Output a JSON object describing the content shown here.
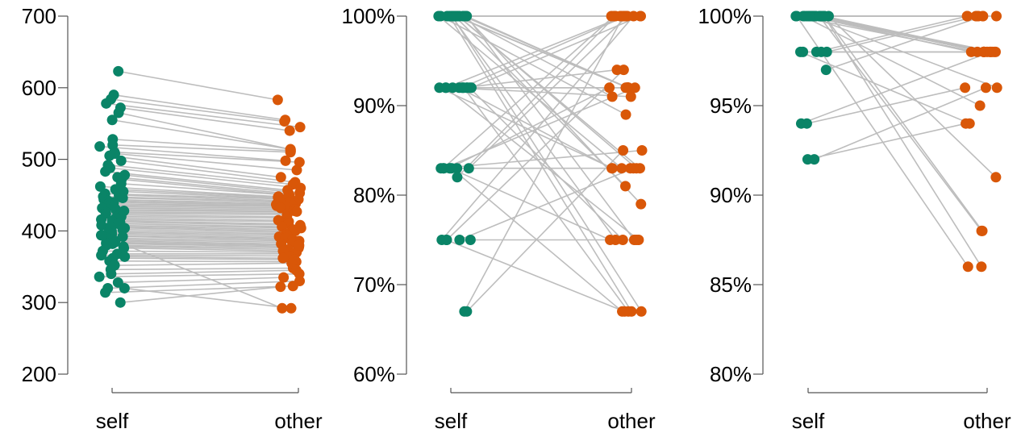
{
  "colors": {
    "self": "#0a8467",
    "other": "#d95708",
    "connector": "#bdbdbd"
  },
  "chart_data": [
    {
      "type": "scatter",
      "title": "",
      "xlabel": "",
      "ylabel": "",
      "categories": [
        "self",
        "other"
      ],
      "ylim": [
        200,
        700
      ],
      "yticks": [
        200,
        300,
        400,
        500,
        600,
        700
      ],
      "ytick_labels": [
        "200",
        "300",
        "400",
        "500",
        "600",
        "700"
      ],
      "series": [
        {
          "values": [
            [
              623,
              583
            ],
            [
              590,
              555
            ],
            [
              584,
              553
            ],
            [
              578,
              545
            ],
            [
              572,
              540
            ],
            [
              565,
              514
            ],
            [
              555,
              514
            ],
            [
              528,
              512
            ],
            [
              520,
              510
            ],
            [
              518,
              498
            ],
            [
              510,
              496
            ],
            [
              508,
              485
            ],
            [
              505,
              475
            ],
            [
              498,
              468
            ],
            [
              492,
              465
            ],
            [
              488,
              460
            ],
            [
              483,
              457
            ],
            [
              478,
              453
            ],
            [
              475,
              452
            ],
            [
              472,
              450
            ],
            [
              466,
              450
            ],
            [
              462,
              448
            ],
            [
              458,
              447
            ],
            [
              455,
              445
            ],
            [
              452,
              444
            ],
            [
              450,
              442
            ],
            [
              448,
              441
            ],
            [
              446,
              440
            ],
            [
              444,
              438
            ],
            [
              442,
              437
            ],
            [
              440,
              436
            ],
            [
              438,
              435
            ],
            [
              436,
              434
            ],
            [
              434,
              432
            ],
            [
              432,
              430
            ],
            [
              430,
              428
            ],
            [
              428,
              427
            ],
            [
              426,
              425
            ],
            [
              424,
              423
            ],
            [
              422,
              420
            ],
            [
              420,
              418
            ],
            [
              418,
              415
            ],
            [
              416,
              413
            ],
            [
              414,
              410
            ],
            [
              412,
              408
            ],
            [
              410,
              406
            ],
            [
              408,
              404
            ],
            [
              406,
              402
            ],
            [
              404,
              400
            ],
            [
              402,
              398
            ],
            [
              400,
              396
            ],
            [
              398,
              394
            ],
            [
              396,
              392
            ],
            [
              394,
              390
            ],
            [
              392,
              388
            ],
            [
              390,
              386
            ],
            [
              388,
              384
            ],
            [
              386,
              382
            ],
            [
              384,
              380
            ],
            [
              382,
              378
            ],
            [
              380,
              376
            ],
            [
              378,
              374
            ],
            [
              376,
              372
            ],
            [
              372,
              370
            ],
            [
              368,
              368
            ],
            [
              366,
              365
            ],
            [
              364,
              362
            ],
            [
              362,
              360
            ],
            [
              358,
              357
            ],
            [
              352,
              355
            ],
            [
              346,
              348
            ],
            [
              340,
              345
            ],
            [
              336,
              340
            ],
            [
              328,
              335
            ],
            [
              320,
              330
            ],
            [
              314,
              323
            ],
            [
              300,
              322
            ],
            [
              320,
              292
            ],
            [
              383,
              380
            ],
            [
              394,
              292
            ]
          ]
        }
      ]
    },
    {
      "type": "scatter",
      "title": "",
      "xlabel": "",
      "ylabel": "",
      "categories": [
        "self",
        "other"
      ],
      "ylim": [
        60,
        100
      ],
      "yticks": [
        60,
        70,
        80,
        90,
        100
      ],
      "ytick_labels": [
        "60%",
        "70%",
        "80%",
        "90%",
        "100%"
      ],
      "series": [
        {
          "values": [
            [
              100,
              100
            ],
            [
              100,
              100
            ],
            [
              100,
              100
            ],
            [
              100,
              100
            ],
            [
              100,
              92
            ],
            [
              100,
              92
            ],
            [
              100,
              92
            ],
            [
              100,
              92
            ],
            [
              100,
              92
            ],
            [
              100,
              83
            ],
            [
              100,
              83
            ],
            [
              100,
              83
            ],
            [
              100,
              75
            ],
            [
              100,
              75
            ],
            [
              100,
              67
            ],
            [
              100,
              67
            ],
            [
              92,
              100
            ],
            [
              92,
              100
            ],
            [
              92,
              100
            ],
            [
              92,
              92
            ],
            [
              92,
              92
            ],
            [
              92,
              83
            ],
            [
              92,
              83
            ],
            [
              92,
              75
            ],
            [
              92,
              75
            ],
            [
              92,
              67
            ],
            [
              83,
              100
            ],
            [
              83,
              100
            ],
            [
              83,
              92
            ],
            [
              83,
              92
            ],
            [
              83,
              83
            ],
            [
              83,
              75
            ],
            [
              83,
              67
            ],
            [
              82,
              100
            ],
            [
              75,
              100
            ],
            [
              75,
              83
            ],
            [
              75,
              75
            ],
            [
              75,
              67
            ],
            [
              75,
              94
            ],
            [
              67,
              100
            ],
            [
              67,
              85
            ],
            [
              100,
              91
            ],
            [
              100,
              89
            ],
            [
              100,
              81
            ],
            [
              100,
              79
            ],
            [
              92,
              94
            ],
            [
              83,
              85
            ],
            [
              92,
              91
            ]
          ]
        }
      ]
    },
    {
      "type": "scatter",
      "title": "",
      "xlabel": "",
      "ylabel": "",
      "categories": [
        "self",
        "other"
      ],
      "ylim": [
        80,
        100
      ],
      "yticks": [
        80,
        85,
        90,
        95,
        100
      ],
      "ytick_labels": [
        "80%",
        "85%",
        "90%",
        "95%",
        "100%"
      ],
      "series": [
        {
          "values": [
            [
              100,
              100
            ],
            [
              100,
              100
            ],
            [
              100,
              100
            ],
            [
              100,
              100
            ],
            [
              100,
              100
            ],
            [
              100,
              98
            ],
            [
              100,
              98
            ],
            [
              100,
              98
            ],
            [
              100,
              98
            ],
            [
              100,
              98
            ],
            [
              100,
              98
            ],
            [
              100,
              98
            ],
            [
              100,
              98
            ],
            [
              100,
              98
            ],
            [
              100,
              98
            ],
            [
              100,
              96
            ],
            [
              100,
              95
            ],
            [
              100,
              91
            ],
            [
              100,
              88
            ],
            [
              100,
              88
            ],
            [
              100,
              86
            ],
            [
              100,
              86
            ],
            [
              98,
              100
            ],
            [
              98,
              100
            ],
            [
              98,
              98
            ],
            [
              98,
              98
            ],
            [
              98,
              94
            ],
            [
              97,
              100
            ],
            [
              94,
              98
            ],
            [
              94,
              96
            ],
            [
              92,
              96
            ],
            [
              92,
              94
            ]
          ]
        }
      ]
    }
  ]
}
